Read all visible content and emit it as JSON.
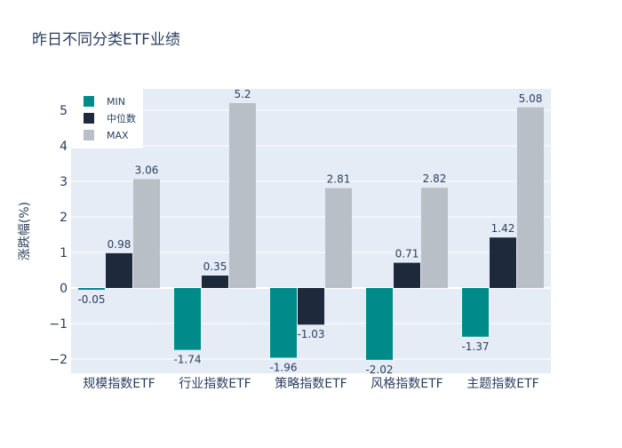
{
  "chart_data": {
    "type": "bar",
    "title": "昨日不同分类ETF业绩",
    "xlabel": "",
    "ylabel": "涨跌幅(%)",
    "ylim": [
      -2.4,
      5.6
    ],
    "yticks": [
      -2,
      -1,
      0,
      1,
      2,
      3,
      4,
      5
    ],
    "ytick_labels": [
      "−2",
      "−1",
      "0",
      "1",
      "2",
      "3",
      "4",
      "5"
    ],
    "categories": [
      "规模指数ETF",
      "行业指数ETF",
      "策略指数ETF",
      "风格指数ETF",
      "主题指数ETF"
    ],
    "series": [
      {
        "name": "MIN",
        "color": "#008b8b",
        "values": [
          -0.05,
          -1.74,
          -1.96,
          -2.02,
          -1.37
        ]
      },
      {
        "name": "中位数",
        "color": "#1e293b",
        "values": [
          0.98,
          0.35,
          -1.03,
          0.71,
          1.42
        ]
      },
      {
        "name": "MAX",
        "color": "#b8bfc7",
        "values": [
          3.06,
          5.2,
          2.81,
          2.82,
          5.08
        ]
      }
    ],
    "legend_position": "top-left",
    "grid": true
  },
  "colors": {
    "plot_bg": "#e5ecf6",
    "grid": "#ffffff",
    "text": "#2a3f5f"
  }
}
